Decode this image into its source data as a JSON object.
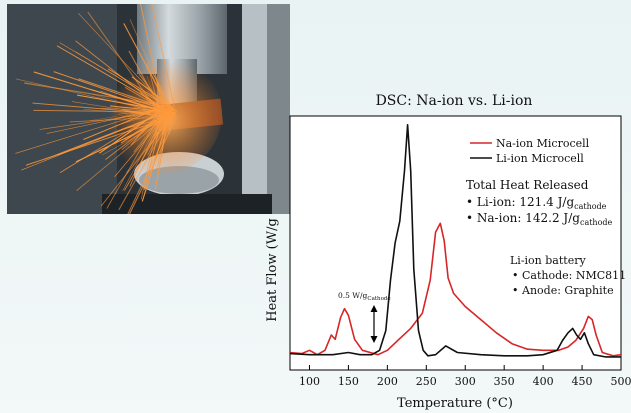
{
  "photo": {
    "caption": "",
    "colors": {
      "sparks": "#ff9a3c",
      "metal": "#9aa3a8",
      "enclosure": "#2b3238",
      "plate": "#8a4b2a"
    }
  },
  "chart_data": {
    "type": "line",
    "title": "DSC: Na-ion vs. Li-ion",
    "xlabel": "Temperature (°C)",
    "ylabel": "Heat Flow (W/g",
    "xlim": [
      75,
      500
    ],
    "xticks": [
      100,
      150,
      200,
      250,
      300,
      350,
      400,
      450,
      500
    ],
    "grid": false,
    "legend_position": "top-right",
    "series": [
      {
        "name": "Na-ion Microcell",
        "color": "#d62728",
        "points": [
          [
            75,
            0.2
          ],
          [
            90,
            0.15
          ],
          [
            100,
            0.3
          ],
          [
            110,
            0.1
          ],
          [
            120,
            0.3
          ],
          [
            128,
            1.0
          ],
          [
            133,
            0.8
          ],
          [
            140,
            1.8
          ],
          [
            145,
            2.2
          ],
          [
            150,
            1.9
          ],
          [
            158,
            0.8
          ],
          [
            168,
            0.3
          ],
          [
            178,
            0.2
          ],
          [
            188,
            0.1
          ],
          [
            200,
            0.3
          ],
          [
            215,
            0.8
          ],
          [
            230,
            1.3
          ],
          [
            245,
            2.0
          ],
          [
            255,
            3.5
          ],
          [
            262,
            5.7
          ],
          [
            268,
            6.1
          ],
          [
            273,
            5.3
          ],
          [
            278,
            3.6
          ],
          [
            285,
            2.9
          ],
          [
            300,
            2.3
          ],
          [
            320,
            1.7
          ],
          [
            340,
            1.1
          ],
          [
            360,
            0.6
          ],
          [
            380,
            0.35
          ],
          [
            400,
            0.3
          ],
          [
            420,
            0.3
          ],
          [
            432,
            0.45
          ],
          [
            442,
            0.75
          ],
          [
            452,
            1.3
          ],
          [
            458,
            1.85
          ],
          [
            463,
            1.7
          ],
          [
            468,
            1.0
          ],
          [
            476,
            0.2
          ],
          [
            490,
            0.05
          ],
          [
            500,
            0.1
          ]
        ]
      },
      {
        "name": "Li-ion Microcell",
        "color": "#111111",
        "points": [
          [
            75,
            0.15
          ],
          [
            100,
            0.1
          ],
          [
            130,
            0.1
          ],
          [
            150,
            0.2
          ],
          [
            165,
            0.1
          ],
          [
            180,
            0.1
          ],
          [
            190,
            0.3
          ],
          [
            198,
            1.2
          ],
          [
            204,
            3.5
          ],
          [
            210,
            5.2
          ],
          [
            216,
            6.2
          ],
          [
            222,
            8.5
          ],
          [
            226,
            10.6
          ],
          [
            230,
            8.5
          ],
          [
            234,
            4.0
          ],
          [
            240,
            1.2
          ],
          [
            246,
            0.3
          ],
          [
            252,
            0.05
          ],
          [
            262,
            0.1
          ],
          [
            275,
            0.5
          ],
          [
            290,
            0.2
          ],
          [
            320,
            0.1
          ],
          [
            350,
            0.05
          ],
          [
            380,
            0.05
          ],
          [
            400,
            0.1
          ],
          [
            418,
            0.3
          ],
          [
            425,
            0.75
          ],
          [
            432,
            1.1
          ],
          [
            438,
            1.3
          ],
          [
            443,
            1.0
          ],
          [
            448,
            0.8
          ],
          [
            453,
            1.1
          ],
          [
            458,
            0.6
          ],
          [
            465,
            0.1
          ],
          [
            480,
            0.0
          ],
          [
            500,
            0.0
          ]
        ]
      }
    ],
    "annotations": {
      "total_heat_title": "Total Heat Released",
      "total_heat_items": [
        {
          "prefix": "Li-ion: 121.4 J/g",
          "subscript": "cathode"
        },
        {
          "prefix": "Na-ion: 142.2 J/g",
          "subscript": "cathode"
        }
      ],
      "battery_title": "Li-ion battery",
      "battery_items": [
        "Cathode: NMC811",
        "Anode: Graphite"
      ],
      "scale_bar": {
        "prefix": "0.5 W/g",
        "subscript": "Cathode",
        "value_w_per_g": 0.5
      }
    }
  }
}
